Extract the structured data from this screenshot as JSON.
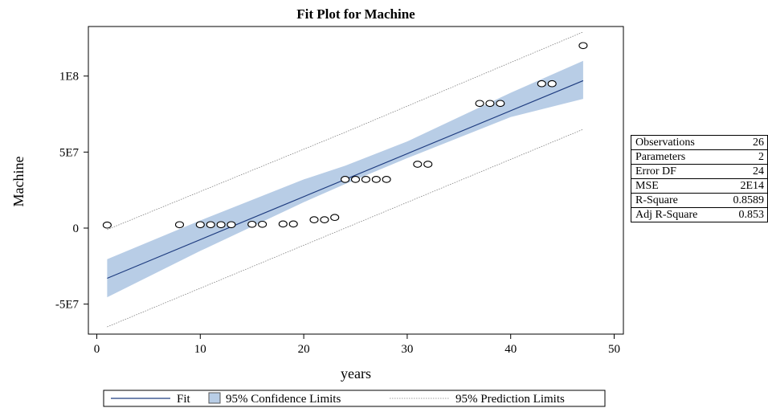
{
  "chart_data": {
    "type": "scatter",
    "title": "Fit Plot for Machine",
    "xlabel": "years",
    "ylabel": "Machine",
    "xlim": [
      0,
      50
    ],
    "ylim": [
      -70000000,
      135000000
    ],
    "x_ticks": [
      0,
      10,
      20,
      30,
      40,
      50
    ],
    "x_tick_labels": [
      "0",
      "10",
      "20",
      "30",
      "40",
      "50"
    ],
    "y_ticks": [
      -50000000,
      0,
      50000000,
      100000000
    ],
    "y_tick_labels": [
      "-5E7",
      "0",
      "5E7",
      "1E8"
    ],
    "grid": false,
    "points": [
      {
        "x": 1,
        "y": 2000000
      },
      {
        "x": 8,
        "y": 2200000
      },
      {
        "x": 10,
        "y": 2200000
      },
      {
        "x": 11,
        "y": 2200000
      },
      {
        "x": 12,
        "y": 2200000
      },
      {
        "x": 13,
        "y": 2200000
      },
      {
        "x": 15,
        "y": 2500000
      },
      {
        "x": 16,
        "y": 2500000
      },
      {
        "x": 18,
        "y": 2700000
      },
      {
        "x": 19,
        "y": 2700000
      },
      {
        "x": 21,
        "y": 5500000
      },
      {
        "x": 22,
        "y": 5500000
      },
      {
        "x": 23,
        "y": 7000000
      },
      {
        "x": 24,
        "y": 32000000
      },
      {
        "x": 25,
        "y": 32000000
      },
      {
        "x": 26,
        "y": 32000000
      },
      {
        "x": 27,
        "y": 32000000
      },
      {
        "x": 28,
        "y": 32000000
      },
      {
        "x": 31,
        "y": 42000000
      },
      {
        "x": 32,
        "y": 42000000
      },
      {
        "x": 37,
        "y": 82000000
      },
      {
        "x": 38,
        "y": 82000000
      },
      {
        "x": 39,
        "y": 82000000
      },
      {
        "x": 43,
        "y": 95000000
      },
      {
        "x": 44,
        "y": 95000000
      },
      {
        "x": 47,
        "y": 120000000
      }
    ],
    "fit_line": {
      "x": [
        1,
        47
      ],
      "y": [
        -33000000,
        97000000
      ]
    },
    "confidence_band": {
      "x": [
        1,
        10,
        20,
        24,
        30,
        40,
        47
      ],
      "lower": [
        -45500000,
        -15000000,
        17000000,
        29000000,
        46000000,
        73000000,
        85000000
      ],
      "upper": [
        -20500000,
        5000000,
        32000000,
        41000000,
        57000000,
        89000000,
        110000000
      ]
    },
    "prediction_band": {
      "x": [
        1,
        24,
        47
      ],
      "lower": [
        -65000000,
        0,
        65000000
      ],
      "upper": [
        -1000000,
        63000000,
        129000000
      ]
    },
    "legend_position": "bottom",
    "legend": {
      "fit": "Fit",
      "confidence": "95% Confidence Limits",
      "prediction": "95% Prediction Limits"
    },
    "colors": {
      "fit": "#1f3d80",
      "confidence": "#b8cde6",
      "prediction": "#7f7f7f",
      "marker": "#000000"
    }
  },
  "stats": [
    {
      "label": "Observations",
      "value": "26"
    },
    {
      "label": "Parameters",
      "value": "2"
    },
    {
      "label": "Error DF",
      "value": "24"
    },
    {
      "label": "MSE",
      "value": "2E14"
    },
    {
      "label": "R-Square",
      "value": "0.8589"
    },
    {
      "label": "Adj R-Square",
      "value": "0.853"
    }
  ]
}
